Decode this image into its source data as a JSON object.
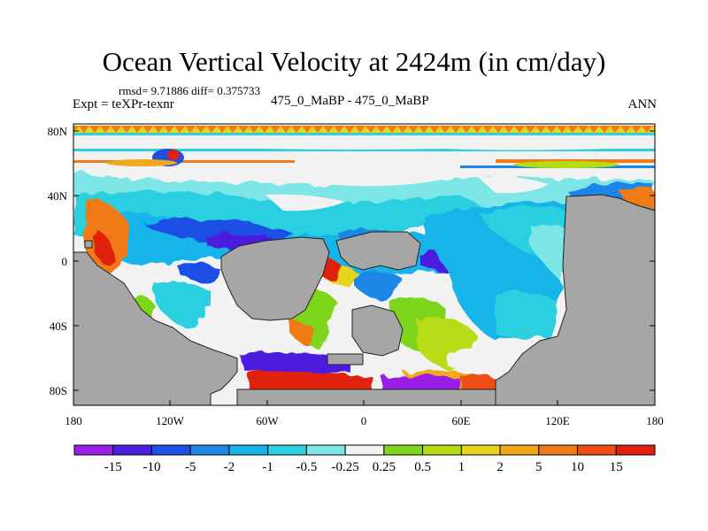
{
  "header": {
    "title": "Ocean Vertical Velocity at 2424m (in cm/day)",
    "stats": "rmsd= 9.71886 diff= 0.375733",
    "expt": "Expt = teXPr-texnr",
    "cases": "475_0_MaBP - 475_0_MaBP",
    "season": "ANN"
  },
  "map": {
    "y_ticks": [
      "80N",
      "40N",
      "0",
      "40S",
      "80S"
    ],
    "x_ticks": [
      "180",
      "120W",
      "60W",
      "0",
      "60E",
      "120E",
      "180"
    ],
    "land_color": "#a6a6a6",
    "coast_color": "#222222"
  },
  "colorbar": {
    "labels": [
      "-15",
      "-10",
      "-5",
      "-2",
      "-1",
      "-0.5",
      "-0.25",
      "0.25",
      "0.5",
      "1",
      "2",
      "5",
      "10",
      "15"
    ],
    "colors": [
      "#9a1fe8",
      "#4b1ee0",
      "#1e50e6",
      "#1e86e6",
      "#17b4e8",
      "#2cd0e0",
      "#7ee6e6",
      "#f2f2f2",
      "#7ed61e",
      "#b8dc14",
      "#e8d21c",
      "#f0a81c",
      "#f07a18",
      "#ee4e14",
      "#e0200e"
    ]
  }
}
